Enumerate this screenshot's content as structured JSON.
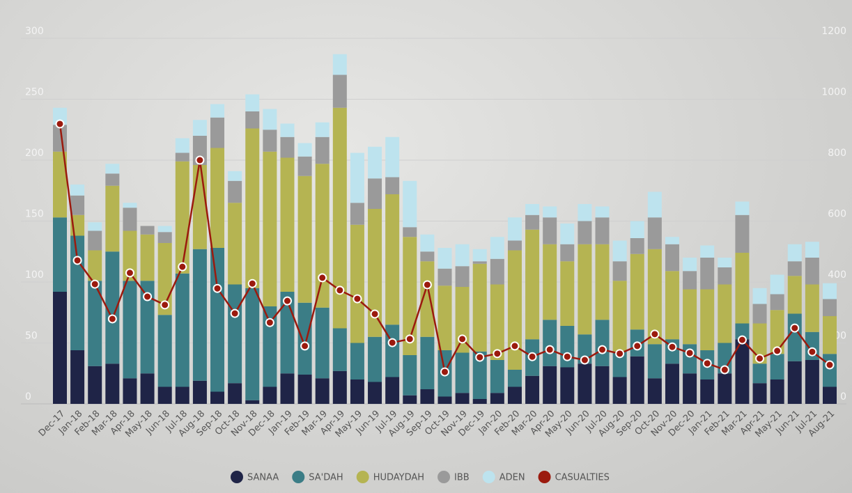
{
  "chart_data": {
    "type": "stacked-bar-line",
    "categories": [
      "Dec-17",
      "Jan-18",
      "Feb-18",
      "Mar-18",
      "Apr-18",
      "May-18",
      "Jun-18",
      "Jul-18",
      "Aug-18",
      "Sep-18",
      "Oct-18",
      "Nov-18",
      "Dec-18",
      "Jan-19",
      "Feb-19",
      "Mar-19",
      "Apr-19",
      "May-19",
      "Jun-19",
      "Jul-19",
      "Aug-19",
      "Sep-19",
      "Oct-19",
      "Nov-19",
      "Dec-19",
      "Jan-20",
      "Feb-20",
      "Mar-20",
      "Apr-20",
      "May-20",
      "Jun-20",
      "Jul-20",
      "Aug-20",
      "Sep-20",
      "Oct-20",
      "Nov-20",
      "Dec-20",
      "Jan-21",
      "Feb-21",
      "Mar-21",
      "Apr-21",
      "May-21",
      "Jun-21",
      "Jul-21",
      "Aug-21"
    ],
    "series": [
      {
        "name": "SANAA",
        "color": "#1f2447",
        "values": [
          92,
          44,
          31,
          33,
          21,
          25,
          14,
          14,
          19,
          10,
          17,
          3,
          14,
          25,
          24,
          21,
          27,
          20,
          18,
          22,
          7,
          12,
          6,
          9,
          4,
          9,
          14,
          23,
          31,
          30,
          33,
          31,
          22,
          39,
          21,
          33,
          25,
          20,
          25,
          53,
          17,
          20,
          35,
          36,
          14
        ]
      },
      {
        "name": "SA'DAH",
        "color": "#3b7d86",
        "values": [
          61,
          94,
          70,
          92,
          80,
          76,
          59,
          93,
          108,
          118,
          81,
          92,
          66,
          67,
          59,
          58,
          35,
          30,
          37,
          43,
          33,
          43,
          38,
          33,
          39,
          27,
          14,
          30,
          38,
          34,
          24,
          38,
          21,
          22,
          28,
          20,
          24,
          24,
          25,
          13,
          16,
          21,
          39,
          23,
          27
        ]
      },
      {
        "name": "HUDAYDAH",
        "color": "#b5b452",
        "values": [
          54,
          17,
          25,
          54,
          41,
          38,
          59,
          92,
          69,
          82,
          67,
          131,
          127,
          110,
          104,
          118,
          181,
          97,
          105,
          107,
          97,
          62,
          53,
          54,
          72,
          62,
          98,
          90,
          62,
          53,
          74,
          62,
          58,
          62,
          78,
          56,
          45,
          50,
          48,
          58,
          33,
          36,
          31,
          39,
          31
        ]
      },
      {
        "name": "IBB",
        "color": "#9a9a9a",
        "values": [
          22,
          16,
          16,
          10,
          19,
          7,
          9,
          7,
          24,
          25,
          18,
          14,
          18,
          17,
          16,
          22,
          27,
          18,
          25,
          14,
          8,
          8,
          14,
          17,
          2,
          21,
          8,
          12,
          22,
          14,
          19,
          22,
          16,
          13,
          26,
          22,
          15,
          26,
          14,
          31,
          16,
          13,
          12,
          22,
          14
        ]
      },
      {
        "name": "ADEN",
        "color": "#bde3ee",
        "values": [
          14,
          9,
          7,
          8,
          4,
          0,
          5,
          12,
          13,
          11,
          8,
          14,
          17,
          11,
          11,
          12,
          17,
          41,
          26,
          33,
          38,
          14,
          17,
          18,
          10,
          18,
          19,
          9,
          9,
          17,
          14,
          9,
          17,
          14,
          21,
          6,
          11,
          10,
          8,
          11,
          13,
          16,
          14,
          13,
          13
        ]
      },
      {
        "name": "CASUALTIES",
        "color": "#9b1a0e",
        "axis": "y2",
        "values": [
          919,
          471,
          393,
          279,
          430,
          352,
          325,
          450,
          800,
          379,
          297,
          395,
          267,
          338,
          190,
          414,
          373,
          345,
          295,
          201,
          213,
          391,
          105,
          213,
          153,
          165,
          190,
          155,
          178,
          155,
          144,
          178,
          165,
          190,
          229,
          187,
          167,
          133,
          112,
          210,
          149,
          174,
          249,
          171,
          128
        ]
      }
    ],
    "ylim": [
      0,
      300
    ],
    "yticks": [
      0,
      50,
      100,
      150,
      200,
      250,
      300
    ],
    "y2lim": [
      0,
      1200
    ],
    "y2ticks": [
      0,
      200,
      400,
      600,
      800,
      1000,
      1200
    ],
    "grid": true
  }
}
